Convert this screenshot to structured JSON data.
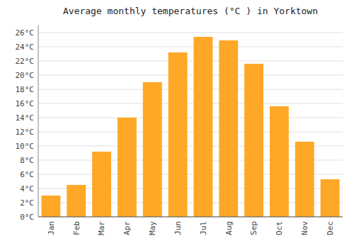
{
  "chart_data": {
    "type": "bar",
    "title": "Average monthly temperatures (°C ) in Yorktown",
    "categories": [
      "Jan",
      "Feb",
      "Mar",
      "Apr",
      "May",
      "Jun",
      "Jul",
      "Aug",
      "Sep",
      "Oct",
      "Nov",
      "Dec"
    ],
    "values": [
      3.0,
      4.5,
      9.2,
      14.0,
      19.0,
      23.2,
      25.4,
      24.9,
      21.6,
      15.6,
      10.6,
      5.3
    ],
    "color": "#FFA726",
    "ylim": [
      0,
      27
    ],
    "yticks": [
      {
        "value": 0,
        "label": "0°C"
      },
      {
        "value": 2,
        "label": "2°C"
      },
      {
        "value": 4,
        "label": "4°C"
      },
      {
        "value": 6,
        "label": "6°C"
      },
      {
        "value": 8,
        "label": "8°C"
      },
      {
        "value": 10,
        "label": "10°C"
      },
      {
        "value": 12,
        "label": "12°C"
      },
      {
        "value": 14,
        "label": "14°C"
      },
      {
        "value": 16,
        "label": "16°C"
      },
      {
        "value": 18,
        "label": "18°C"
      },
      {
        "value": 20,
        "label": "20°C"
      },
      {
        "value": 22,
        "label": "22°C"
      },
      {
        "value": 24,
        "label": "24°C"
      },
      {
        "value": 26,
        "label": "26°C"
      }
    ],
    "grid": true
  }
}
